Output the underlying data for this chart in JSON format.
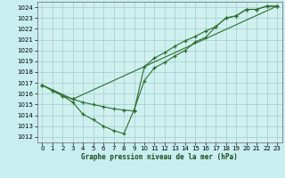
{
  "title": "Graphe pression niveau de la mer (hPa)",
  "background_color": "#c8eef0",
  "plot_bg_color": "#d0f0f0",
  "grid_color": "#a0cccc",
  "line_color": "#2d6e2d",
  "xlim": [
    -0.5,
    23.5
  ],
  "ylim": [
    1011.5,
    1024.5
  ],
  "xticks": [
    0,
    1,
    2,
    3,
    4,
    5,
    6,
    7,
    8,
    9,
    10,
    11,
    12,
    13,
    14,
    15,
    16,
    17,
    18,
    19,
    20,
    21,
    22,
    23
  ],
  "yticks": [
    1012,
    1013,
    1014,
    1015,
    1016,
    1017,
    1018,
    1019,
    1020,
    1021,
    1022,
    1023,
    1024
  ],
  "series1_x": [
    0,
    1,
    2,
    3,
    4,
    5,
    6,
    7,
    8,
    9,
    10,
    11,
    12,
    13,
    14,
    15,
    16,
    17,
    18,
    19,
    20,
    21,
    22,
    23
  ],
  "series1_y": [
    1016.8,
    1016.3,
    1015.8,
    1015.2,
    1014.1,
    1013.6,
    1013.0,
    1012.6,
    1012.3,
    1014.5,
    1017.2,
    1018.4,
    1018.9,
    1019.5,
    1020.0,
    1020.8,
    1021.2,
    1022.2,
    1023.0,
    1023.2,
    1023.8,
    1023.8,
    1024.1,
    1024.1
  ],
  "series2_x": [
    0,
    1,
    2,
    3,
    4,
    5,
    6,
    7,
    8,
    9,
    10,
    11,
    12,
    13,
    14,
    15,
    16,
    17,
    18,
    19,
    20,
    21,
    22,
    23
  ],
  "series2_y": [
    1016.8,
    1016.3,
    1015.8,
    1015.5,
    1015.2,
    1015.0,
    1014.8,
    1014.6,
    1014.5,
    1014.4,
    1018.5,
    1019.3,
    1019.8,
    1020.4,
    1020.9,
    1021.3,
    1021.8,
    1022.2,
    1023.0,
    1023.2,
    1023.8,
    1023.8,
    1024.1,
    1024.1
  ],
  "series3_x": [
    0,
    3,
    23
  ],
  "series3_y": [
    1016.8,
    1015.5,
    1024.1
  ]
}
